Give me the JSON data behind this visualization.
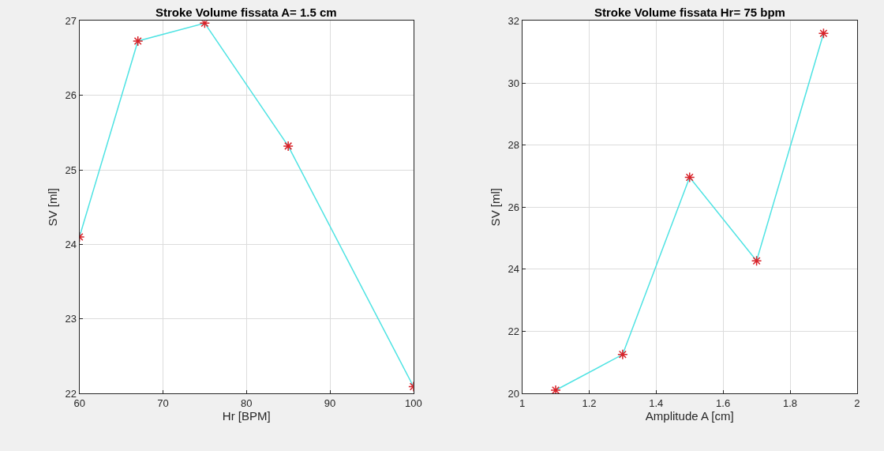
{
  "chart_data": [
    {
      "type": "line",
      "title": "Stroke Volume fissata A= 1.5 cm",
      "xlabel": "Hr [BPM]",
      "ylabel": "SV [ml]",
      "x": [
        60,
        67,
        75,
        85,
        100
      ],
      "series": [
        {
          "color": "#4fe3e3",
          "marker": "none",
          "values": [
            24.1,
            26.73,
            26.97,
            25.32,
            22.09
          ]
        },
        {
          "type": "scatter",
          "color": "#d8232a",
          "marker": "cross",
          "values": [
            24.1,
            26.73,
            26.97,
            25.32,
            22.09
          ]
        }
      ],
      "xlim": [
        60,
        100
      ],
      "xticks": [
        60,
        70,
        80,
        90,
        100
      ],
      "ylim": [
        22,
        27
      ],
      "yticks": [
        22,
        23,
        24,
        25,
        26,
        27
      ],
      "grid": true
    },
    {
      "type": "line",
      "title": "Stroke Volume fissata Hr= 75 bpm",
      "xlabel": "Amplitude A [cm]",
      "ylabel": "SV [ml]",
      "x": [
        1.1,
        1.3,
        1.5,
        1.7,
        1.9
      ],
      "series": [
        {
          "color": "#4fe3e3",
          "marker": "none",
          "values": [
            20.1,
            21.25,
            26.96,
            24.27,
            31.6
          ]
        },
        {
          "type": "scatter",
          "color": "#d8232a",
          "marker": "cross",
          "values": [
            20.1,
            21.25,
            26.96,
            24.27,
            31.6
          ]
        }
      ],
      "xlim": [
        1,
        2
      ],
      "xticks": [
        1,
        1.2,
        1.4,
        1.6,
        1.8,
        2
      ],
      "ylim": [
        20,
        32
      ],
      "yticks": [
        20,
        22,
        24,
        26,
        28,
        30,
        32
      ],
      "grid": true
    }
  ]
}
